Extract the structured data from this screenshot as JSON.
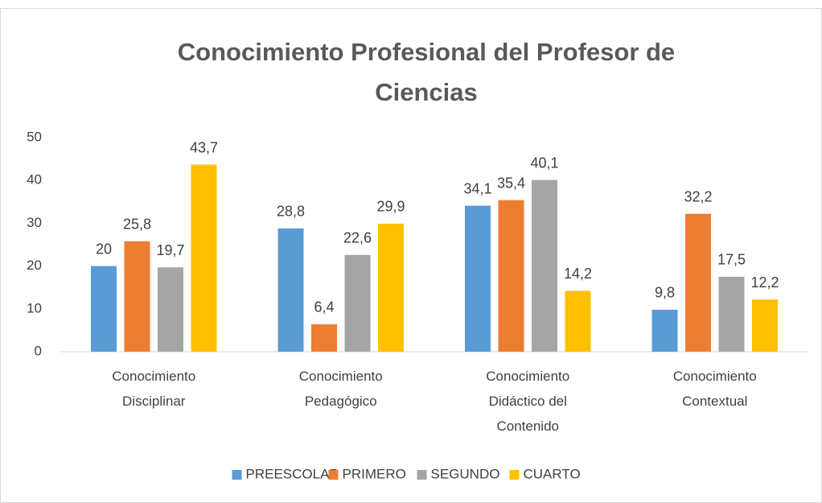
{
  "chart_data": {
    "type": "bar",
    "title": "Conocimiento Profesional del Profesor de Ciencias",
    "categories": [
      "Conocimiento Disciplinar",
      "Conocimiento Pedagógico",
      "Conocimiento Didáctico del Contenido",
      "Conocimiento Contextual"
    ],
    "series": [
      {
        "name": "PREESCOLAR",
        "color": "#5b9bd5",
        "values": [
          20,
          28.8,
          34.1,
          9.8
        ],
        "value_labels": [
          "20",
          "28,8",
          "34,1",
          "9,8"
        ]
      },
      {
        "name": "PRIMERO",
        "color": "#ed7d31",
        "values": [
          25.8,
          6.4,
          35.4,
          32.2
        ],
        "value_labels": [
          "25,8",
          "6,4",
          "35,4",
          "32,2"
        ]
      },
      {
        "name": "SEGUNDO",
        "color": "#a5a5a5",
        "values": [
          19.7,
          22.6,
          40.1,
          17.5
        ],
        "value_labels": [
          "19,7",
          "22,6",
          "40,1",
          "17,5"
        ]
      },
      {
        "name": "CUARTO",
        "color": "#ffc000",
        "values": [
          43.7,
          29.9,
          14.2,
          12.2
        ],
        "value_labels": [
          "43,7",
          "29,9",
          "14,2",
          "12,2"
        ]
      }
    ],
    "ylim": [
      0,
      50
    ],
    "yticks": [
      0,
      10,
      20,
      30,
      40,
      50
    ],
    "grid": false,
    "legend": "bottom"
  }
}
